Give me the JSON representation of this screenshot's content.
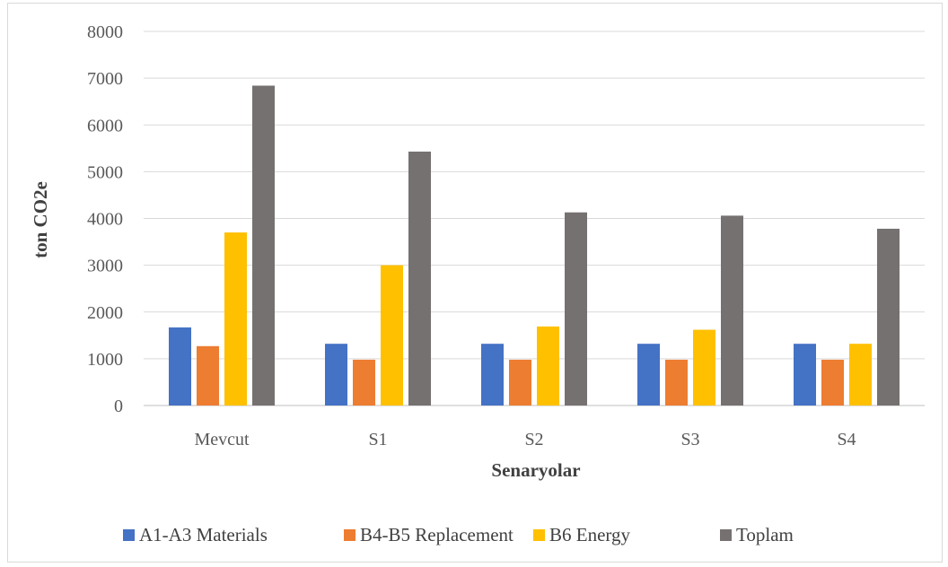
{
  "chart_data": {
    "type": "bar",
    "title": "",
    "xlabel": "Senaryolar",
    "ylabel": "ton CO2e",
    "ylim": [
      0,
      8000
    ],
    "ytick_step": 1000,
    "grid": true,
    "legend_position": "bottom",
    "categories": [
      "Mevcut",
      "S1",
      "S2",
      "S3",
      "S4"
    ],
    "series": [
      {
        "name": "A1-A3 Materials",
        "color": "#4472c4",
        "values": [
          1670,
          1320,
          1320,
          1320,
          1320
        ]
      },
      {
        "name": "B4-B5 Replacement",
        "color": "#ed7d31",
        "values": [
          1270,
          980,
          980,
          980,
          980
        ]
      },
      {
        "name": "B6 Energy",
        "color": "#ffc000",
        "values": [
          3700,
          3000,
          1690,
          1620,
          1320
        ]
      },
      {
        "name": "Toplam",
        "color": "#767171",
        "values": [
          6840,
          5430,
          4130,
          4060,
          3780
        ]
      }
    ]
  }
}
